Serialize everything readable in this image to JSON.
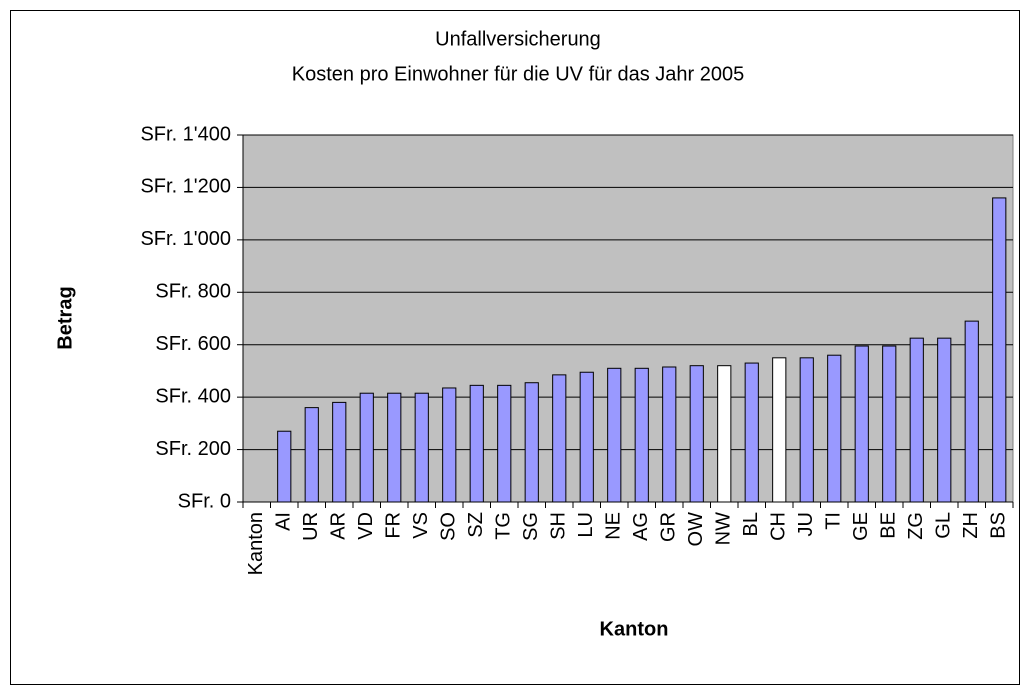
{
  "chart_data": {
    "type": "bar",
    "title": "Unfallversicherung",
    "subtitle": "Kosten pro Einwohner für die UV für das Jahr 2005",
    "x_label": "Kanton",
    "y_label": "Betrag",
    "categories": [
      "Kanton",
      "AI",
      "UR",
      "AR",
      "VD",
      "FR",
      "VS",
      "SO",
      "SZ",
      "TG",
      "SG",
      "SH",
      "LU",
      "NE",
      "AG",
      "GR",
      "OW",
      "NW",
      "BL",
      "CH",
      "JU",
      "TI",
      "GE",
      "BE",
      "ZG",
      "GL",
      "ZH",
      "BS"
    ],
    "values": [
      null,
      270,
      360,
      380,
      415,
      415,
      415,
      435,
      445,
      445,
      455,
      485,
      495,
      510,
      510,
      515,
      520,
      520,
      530,
      550,
      550,
      560,
      595,
      595,
      625,
      625,
      690,
      1160
    ],
    "colors": [
      "#9999ff",
      "#9999ff",
      "#9999ff",
      "#9999ff",
      "#9999ff",
      "#9999ff",
      "#9999ff",
      "#9999ff",
      "#9999ff",
      "#9999ff",
      "#9999ff",
      "#9999ff",
      "#9999ff",
      "#9999ff",
      "#9999ff",
      "#9999ff",
      "#9999ff",
      "#ffffff",
      "#9999ff",
      "#ffffff",
      "#9999ff",
      "#9999ff",
      "#9999ff",
      "#9999ff",
      "#9999ff",
      "#9999ff",
      "#9999ff",
      "#9999ff"
    ],
    "plot_background": "#c0c0c0",
    "ylim": [
      0,
      1400
    ],
    "yticks": [
      {
        "value": 0,
        "label": "SFr. 0"
      },
      {
        "value": 200,
        "label": "SFr. 200"
      },
      {
        "value": 400,
        "label": "SFr. 400"
      },
      {
        "value": 600,
        "label": "SFr. 600"
      },
      {
        "value": 800,
        "label": "SFr. 800"
      },
      {
        "value": 1000,
        "label": "SFr. 1'000"
      },
      {
        "value": 1200,
        "label": "SFr. 1'200"
      },
      {
        "value": 1400,
        "label": "SFr. 1'400"
      }
    ],
    "grid": true
  }
}
